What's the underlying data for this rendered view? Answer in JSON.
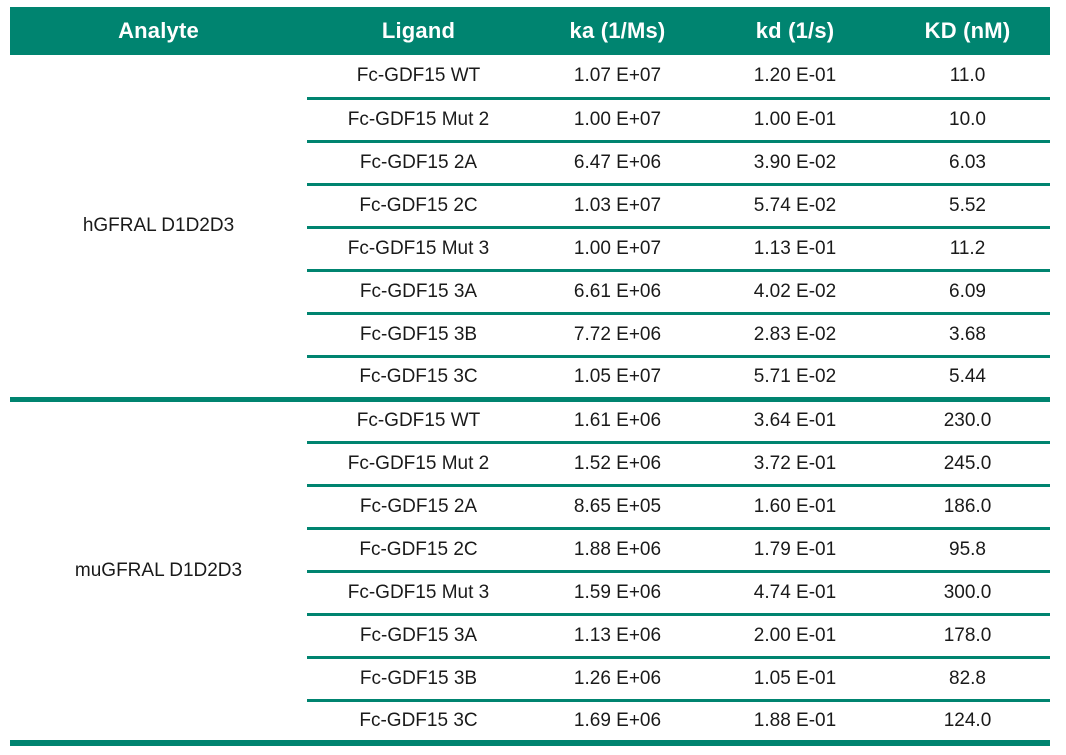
{
  "colors": {
    "accent_green": "#008470",
    "header_text": "#ffffff",
    "body_text": "#1a1a1a"
  },
  "table": {
    "headers": [
      "Analyte",
      "Ligand",
      "ka (1/Ms)",
      "kd (1/s)",
      "KD (nM)"
    ],
    "groups": [
      {
        "analyte": "hGFRAL D1D2D3",
        "rows": [
          {
            "ligand": "Fc-GDF15 WT",
            "ka": "1.07 E+07",
            "kd": "1.20 E-01",
            "KD": "11.0"
          },
          {
            "ligand": "Fc-GDF15 Mut 2",
            "ka": "1.00 E+07",
            "kd": "1.00 E-01",
            "KD": "10.0"
          },
          {
            "ligand": "Fc-GDF15 2A",
            "ka": "6.47 E+06",
            "kd": "3.90 E-02",
            "KD": "6.03"
          },
          {
            "ligand": "Fc-GDF15 2C",
            "ka": "1.03 E+07",
            "kd": "5.74 E-02",
            "KD": "5.52"
          },
          {
            "ligand": "Fc-GDF15 Mut 3",
            "ka": "1.00 E+07",
            "kd": "1.13 E-01",
            "KD": "11.2"
          },
          {
            "ligand": "Fc-GDF15 3A",
            "ka": "6.61 E+06",
            "kd": "4.02 E-02",
            "KD": "6.09"
          },
          {
            "ligand": "Fc-GDF15 3B",
            "ka": "7.72 E+06",
            "kd": "2.83 E-02",
            "KD": "3.68"
          },
          {
            "ligand": "Fc-GDF15 3C",
            "ka": "1.05 E+07",
            "kd": "5.71 E-02",
            "KD": "5.44"
          }
        ]
      },
      {
        "analyte": "muGFRAL D1D2D3",
        "rows": [
          {
            "ligand": "Fc-GDF15 WT",
            "ka": "1.61 E+06",
            "kd": "3.64 E-01",
            "KD": "230.0"
          },
          {
            "ligand": "Fc-GDF15 Mut 2",
            "ka": "1.52 E+06",
            "kd": "3.72 E-01",
            "KD": "245.0"
          },
          {
            "ligand": "Fc-GDF15 2A",
            "ka": "8.65 E+05",
            "kd": "1.60 E-01",
            "KD": "186.0"
          },
          {
            "ligand": "Fc-GDF15 2C",
            "ka": "1.88 E+06",
            "kd": "1.79 E-01",
            "KD": "95.8"
          },
          {
            "ligand": "Fc-GDF15 Mut 3",
            "ka": "1.59 E+06",
            "kd": "4.74 E-01",
            "KD": "300.0"
          },
          {
            "ligand": "Fc-GDF15 3A",
            "ka": "1.13 E+06",
            "kd": "2.00 E-01",
            "KD": "178.0"
          },
          {
            "ligand": "Fc-GDF15 3B",
            "ka": "1.26 E+06",
            "kd": "1.05 E-01",
            "KD": "82.8"
          },
          {
            "ligand": "Fc-GDF15 3C",
            "ka": "1.69 E+06",
            "kd": "1.88 E-01",
            "KD": "124.0"
          }
        ]
      }
    ]
  },
  "chart_data": {
    "type": "table",
    "columns": [
      "Analyte",
      "Ligand",
      "ka (1/Ms)",
      "kd (1/s)",
      "KD (nM)"
    ],
    "rows": [
      [
        "hGFRAL D1D2D3",
        "Fc-GDF15 WT",
        "1.07 E+07",
        "1.20 E-01",
        "11.0"
      ],
      [
        "hGFRAL D1D2D3",
        "Fc-GDF15 Mut 2",
        "1.00 E+07",
        "1.00 E-01",
        "10.0"
      ],
      [
        "hGFRAL D1D2D3",
        "Fc-GDF15 2A",
        "6.47 E+06",
        "3.90 E-02",
        "6.03"
      ],
      [
        "hGFRAL D1D2D3",
        "Fc-GDF15 2C",
        "1.03 E+07",
        "5.74 E-02",
        "5.52"
      ],
      [
        "hGFRAL D1D2D3",
        "Fc-GDF15 Mut 3",
        "1.00 E+07",
        "1.13 E-01",
        "11.2"
      ],
      [
        "hGFRAL D1D2D3",
        "Fc-GDF15 3A",
        "6.61 E+06",
        "4.02 E-02",
        "6.09"
      ],
      [
        "hGFRAL D1D2D3",
        "Fc-GDF15 3B",
        "7.72 E+06",
        "2.83 E-02",
        "3.68"
      ],
      [
        "hGFRAL D1D2D3",
        "Fc-GDF15 3C",
        "1.05 E+07",
        "5.71 E-02",
        "5.44"
      ],
      [
        "muGFRAL D1D2D3",
        "Fc-GDF15 WT",
        "1.61 E+06",
        "3.64 E-01",
        "230.0"
      ],
      [
        "muGFRAL D1D2D3",
        "Fc-GDF15 Mut 2",
        "1.52 E+06",
        "3.72 E-01",
        "245.0"
      ],
      [
        "muGFRAL D1D2D3",
        "Fc-GDF15 2A",
        "8.65 E+05",
        "1.60 E-01",
        "186.0"
      ],
      [
        "muGFRAL D1D2D3",
        "Fc-GDF15 2C",
        "1.88 E+06",
        "1.79 E-01",
        "95.8"
      ],
      [
        "muGFRAL D1D2D3",
        "Fc-GDF15 Mut 3",
        "1.59 E+06",
        "4.74 E-01",
        "300.0"
      ],
      [
        "muGFRAL D1D2D3",
        "Fc-GDF15 3A",
        "1.13 E+06",
        "2.00 E-01",
        "178.0"
      ],
      [
        "muGFRAL D1D2D3",
        "Fc-GDF15 3B",
        "1.26 E+06",
        "1.05 E-01",
        "82.8"
      ],
      [
        "muGFRAL D1D2D3",
        "Fc-GDF15 3C",
        "1.69 E+06",
        "1.88 E-01",
        "124.0"
      ]
    ]
  }
}
